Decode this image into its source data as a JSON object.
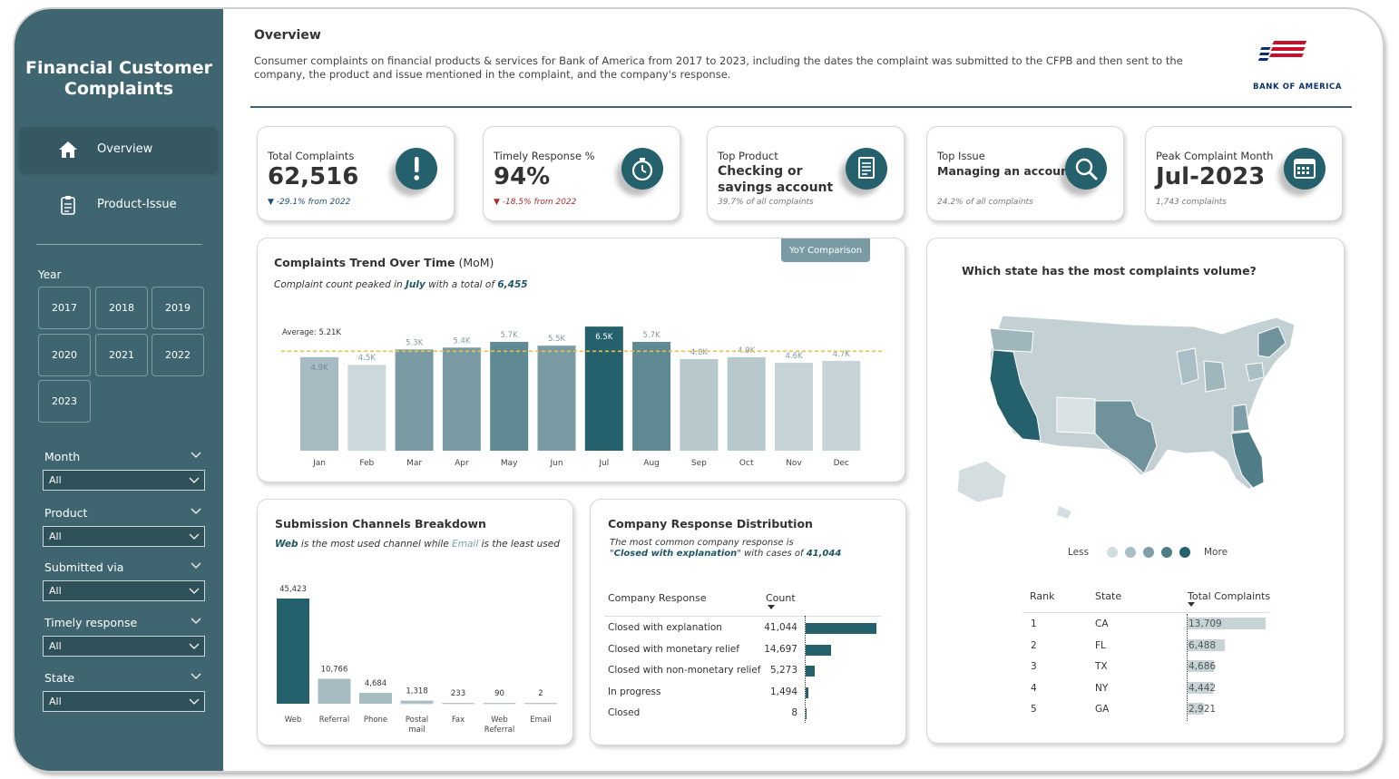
{
  "sidebar": {
    "title": "Financial Customer Complaints",
    "nav": [
      {
        "label": "Overview"
      },
      {
        "label": "Product-Issue"
      }
    ],
    "year_label": "Year",
    "years": [
      "2017",
      "2018",
      "2019",
      "2020",
      "2021",
      "2022",
      "2023"
    ],
    "filters": [
      {
        "label": "Month",
        "value": "All"
      },
      {
        "label": "Product",
        "value": "All"
      },
      {
        "label": "Submitted via",
        "value": "All"
      },
      {
        "label": "Timely response",
        "value": "All"
      },
      {
        "label": "State",
        "value": "All"
      }
    ]
  },
  "header": {
    "title": "Overview",
    "description": "Consumer complaints on financial products & services for Bank of America from 2017 to 2023, including the dates the complaint was submitted to the CFPB and then sent to the company, the product and issue mentioned in the complaint, and the company's response.",
    "logo_text": "BANK OF AMERICA"
  },
  "kpis": [
    {
      "label": "Total Complaints",
      "value": "62,516",
      "sub": "▼ -29.1% from 2022",
      "icon": "exclamation-icon"
    },
    {
      "label": "Timely Response %",
      "value": "94%",
      "sub": "▼ -18.5% from 2022",
      "icon": "stopwatch-icon"
    },
    {
      "label": "Top Product",
      "value_line1": "Checking or",
      "value_line2": "savings account",
      "sub": "39.7% of all complaints",
      "icon": "document-icon"
    },
    {
      "label": "Top Issue",
      "value": "Managing an account",
      "sub": "24.2% of all complaints",
      "icon": "magnifier-icon"
    },
    {
      "label": "Peak Complaint Month",
      "value": "Jul-2023",
      "sub": "1,743 complaints",
      "icon": "calendar-icon"
    }
  ],
  "trend": {
    "title": "Complaints Trend Over Time",
    "title_suffix": " (MoM)",
    "sub_pre": "Complaint count peaked in ",
    "sub_month": "July",
    "sub_mid": " with a total of ",
    "sub_val": "6,455",
    "yoy_button": "YoY Comparison",
    "average_label": "Average: 5.21K"
  },
  "chart_data": [
    {
      "type": "bar",
      "title": "Complaints Trend Over Time (MoM)",
      "categories": [
        "Jan",
        "Feb",
        "Mar",
        "Apr",
        "May",
        "Jun",
        "Jul",
        "Aug",
        "Sep",
        "Oct",
        "Nov",
        "Dec"
      ],
      "values": [
        4900,
        4500,
        5300,
        5400,
        5700,
        5500,
        6500,
        5700,
        4800,
        4900,
        4600,
        4700
      ],
      "labels": [
        "4.9K",
        "4.5K",
        "5.3K",
        "5.4K",
        "5.7K",
        "5.5K",
        "6.5K",
        "5.7K",
        "4.8K",
        "4.9K",
        "4.6K",
        "4.7K"
      ],
      "average": 5210,
      "ylim": [
        0,
        6600
      ],
      "colors": [
        "#a7bcc2",
        "#ccd9dc",
        "#7a9ba3",
        "#7a9ba3",
        "#5f8993",
        "#7a9ba3",
        "#25606d",
        "#5f8993",
        "#b8c9cd",
        "#b8c9cd",
        "#c6d4d7",
        "#c6d4d7"
      ]
    },
    {
      "type": "bar",
      "title": "Submission Channels Breakdown",
      "categories": [
        "Web",
        "Referral",
        "Phone",
        "Postal mail",
        "Fax",
        "Web Referral",
        "Email"
      ],
      "values": [
        45423,
        10766,
        4684,
        1318,
        233,
        90,
        2
      ],
      "labels": [
        "45,423",
        "10,766",
        "4,684",
        "1,318",
        "233",
        "90",
        "2"
      ],
      "ylim": [
        0,
        45423
      ]
    },
    {
      "type": "table",
      "title": "Company Response Distribution",
      "columns": [
        "Company Response",
        "Count"
      ],
      "rows": [
        {
          "response": "Closed with explanation",
          "count": 41044,
          "count_label": "41,044"
        },
        {
          "response": "Closed with monetary relief",
          "count": 14697,
          "count_label": "14,697"
        },
        {
          "response": "Closed with non-monetary relief",
          "count": 5273,
          "count_label": "5,273"
        },
        {
          "response": "In progress",
          "count": 1494,
          "count_label": "1,494"
        },
        {
          "response": "Closed",
          "count": 8,
          "count_label": "8"
        }
      ]
    },
    {
      "type": "table",
      "title": "Which state has the most complaints volume?",
      "columns": [
        "Rank",
        "State",
        "Total Complaints"
      ],
      "rows": [
        {
          "rank": "1",
          "state": "CA",
          "total": 13709,
          "total_label": "13,709"
        },
        {
          "rank": "2",
          "state": "FL",
          "total": 6488,
          "total_label": "6,488"
        },
        {
          "rank": "3",
          "state": "TX",
          "total": 4686,
          "total_label": "4,686"
        },
        {
          "rank": "4",
          "state": "NY",
          "total": 4442,
          "total_label": "4,442"
        },
        {
          "rank": "5",
          "state": "GA",
          "total": 2921,
          "total_label": "2,921"
        }
      ]
    }
  ],
  "channels": {
    "title": "Submission Channels Breakdown",
    "sub_a": "Web",
    "sub_b": " is the most used channel while ",
    "sub_c": "Email",
    "sub_d": " is the least used"
  },
  "response": {
    "title": "Company Response Distribution",
    "sub_line1": "The most common company response is",
    "sub_q1": "\"",
    "sub_val": "Closed with explanation",
    "sub_q2": "\" with cases of ",
    "sub_num": "41,044"
  },
  "map": {
    "title": "Which state has the most complaints volume?",
    "legend_less": "Less",
    "legend_more": "More",
    "legend_colors": [
      "#d2dde0",
      "#a9bfc5",
      "#7f9fa8",
      "#4f7d88",
      "#25606d"
    ]
  },
  "colors": {
    "sidebar": "#3f6670",
    "accent": "#25606d",
    "light_bar": "#c6d4d7",
    "avg_line": "#e8c24a"
  }
}
